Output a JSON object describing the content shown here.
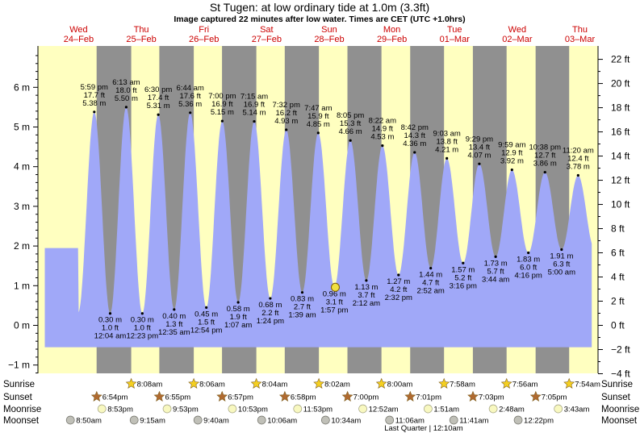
{
  "title": "St Tugen: at low  ordinary tide at 1.0m (3.3ft)",
  "subtitle": "Image captured 22 minutes after low water. Times are CET (UTC +1.0hrs)",
  "colors": {
    "water": "#a0a8f8",
    "day": "#ffffc0",
    "night": "#909090",
    "day_text": "#cc0000",
    "sunrise": "#f5d020",
    "sunset": "#b06a30",
    "moon": "#f8f8c0",
    "moonset": "#c0c0b8"
  },
  "chart_data": {
    "type": "area",
    "title": "St Tugen: at low  ordinary tide at 1.0m (3.3ft)",
    "ylabel": "",
    "ylabel_right": "",
    "ylim": [
      -1.3,
      7.1
    ],
    "y_ticks_m": [
      "−1 m",
      "0 m",
      "1 m",
      "2 m",
      "3 m",
      "4 m",
      "5 m",
      "6 m"
    ],
    "y_ticks_ft": [
      "−4 ft",
      "−2 ft",
      "0 ft",
      "2 ft",
      "4 ft",
      "6 ft",
      "8 ft",
      "10 ft",
      "12 ft",
      "14 ft",
      "16 ft",
      "18 ft",
      "20 ft",
      "22 ft"
    ],
    "days": [
      {
        "weekday": "Wed",
        "date": "24–Feb"
      },
      {
        "weekday": "Thu",
        "date": "25–Feb"
      },
      {
        "weekday": "Fri",
        "date": "26–Feb"
      },
      {
        "weekday": "Sat",
        "date": "27–Feb"
      },
      {
        "weekday": "Sun",
        "date": "28–Feb"
      },
      {
        "weekday": "Mon",
        "date": "29–Feb"
      },
      {
        "weekday": "Tue",
        "date": "01–Mar"
      },
      {
        "weekday": "Wed",
        "date": "02–Mar"
      },
      {
        "weekday": "Thu",
        "date": "03–Mar"
      }
    ],
    "series": [
      {
        "name": "Tide height",
        "points": [
          {
            "t": "Wed 24-Feb 17:59",
            "kind": "high",
            "time": "5:59 pm",
            "feet": "17.7 ft",
            "value": 5.38
          },
          {
            "t": "Thu 25-Feb 00:04",
            "kind": "low",
            "time": "12:04 am",
            "feet": "1.0 ft",
            "value": 0.3
          },
          {
            "t": "Thu 25-Feb 06:13",
            "kind": "high",
            "time": "6:13 am",
            "feet": "18.0 ft",
            "value": 5.5
          },
          {
            "t": "Thu 25-Feb 12:23",
            "kind": "low",
            "time": "12:23 pm",
            "feet": "1.0 ft",
            "value": 0.3
          },
          {
            "t": "Thu 25-Feb 18:30",
            "kind": "high",
            "time": "6:30 pm",
            "feet": "17.4 ft",
            "value": 5.31
          },
          {
            "t": "Fri 26-Feb 00:35",
            "kind": "low",
            "time": "12:35 am",
            "feet": "1.3 ft",
            "value": 0.4
          },
          {
            "t": "Fri 26-Feb 06:44",
            "kind": "high",
            "time": "6:44 am",
            "feet": "17.6 ft",
            "value": 5.36
          },
          {
            "t": "Fri 26-Feb 12:54",
            "kind": "low",
            "time": "12:54 pm",
            "feet": "1.5 ft",
            "value": 0.45
          },
          {
            "t": "Fri 26-Feb 19:00",
            "kind": "high",
            "time": "7:00 pm",
            "feet": "16.9 ft",
            "value": 5.15
          },
          {
            "t": "Sat 27-Feb 01:07",
            "kind": "low",
            "time": "1:07 am",
            "feet": "1.9 ft",
            "value": 0.58
          },
          {
            "t": "Sat 27-Feb 07:15",
            "kind": "high",
            "time": "7:15 am",
            "feet": "16.9 ft",
            "value": 5.14
          },
          {
            "t": "Sat 27-Feb 13:24",
            "kind": "low",
            "time": "1:24 pm",
            "feet": "2.2 ft",
            "value": 0.68
          },
          {
            "t": "Sat 27-Feb 19:32",
            "kind": "high",
            "time": "7:32 pm",
            "feet": "16.2 ft",
            "value": 4.93
          },
          {
            "t": "Sun 28-Feb 01:39",
            "kind": "low",
            "time": "1:39 am",
            "feet": "2.7 ft",
            "value": 0.83
          },
          {
            "t": "Sun 28-Feb 07:47",
            "kind": "high",
            "time": "7:47 am",
            "feet": "15.9 ft",
            "value": 4.85
          },
          {
            "t": "Sun 28-Feb 13:57",
            "kind": "low",
            "time": "1:57 pm",
            "feet": "3.1 ft",
            "value": 0.96
          },
          {
            "t": "Sun 28-Feb 20:05",
            "kind": "high",
            "time": "8:05 pm",
            "feet": "15.3 ft",
            "value": 4.66
          },
          {
            "t": "Mon 29-Feb 02:12",
            "kind": "low",
            "time": "2:12 am",
            "feet": "3.7 ft",
            "value": 1.13
          },
          {
            "t": "Mon 29-Feb 08:22",
            "kind": "high",
            "time": "8:22 am",
            "feet": "14.9 ft",
            "value": 4.53
          },
          {
            "t": "Mon 29-Feb 14:32",
            "kind": "low",
            "time": "2:32 pm",
            "feet": "4.2 ft",
            "value": 1.27
          },
          {
            "t": "Mon 29-Feb 20:42",
            "kind": "high",
            "time": "8:42 pm",
            "feet": "14.3 ft",
            "value": 4.36
          },
          {
            "t": "Tue 01-Mar 02:52",
            "kind": "low",
            "time": "2:52 am",
            "feet": "4.7 ft",
            "value": 1.44
          },
          {
            "t": "Tue 01-Mar 09:03",
            "kind": "high",
            "time": "9:03 am",
            "feet": "13.8 ft",
            "value": 4.21
          },
          {
            "t": "Tue 01-Mar 15:16",
            "kind": "low",
            "time": "3:16 pm",
            "feet": "5.2 ft",
            "value": 1.57
          },
          {
            "t": "Tue 01-Mar 21:29",
            "kind": "high",
            "time": "9:29 pm",
            "feet": "13.4 ft",
            "value": 4.07
          },
          {
            "t": "Wed 02-Mar 03:44",
            "kind": "low",
            "time": "3:44 am",
            "feet": "5.7 ft",
            "value": 1.73
          },
          {
            "t": "Wed 02-Mar 09:59",
            "kind": "high",
            "time": "9:59 am",
            "feet": "12.9 ft",
            "value": 3.92
          },
          {
            "t": "Wed 02-Mar 16:16",
            "kind": "low",
            "time": "4:16 pm",
            "feet": "6.0 ft",
            "value": 1.83
          },
          {
            "t": "Wed 02-Mar 22:38",
            "kind": "high",
            "time": "10:38 pm",
            "feet": "12.7 ft",
            "value": 3.86
          },
          {
            "t": "Thu 03-Mar 05:00",
            "kind": "low",
            "time": "5:00 am",
            "feet": "6.3 ft",
            "value": 1.91
          },
          {
            "t": "Thu 03-Mar 11:20",
            "kind": "high",
            "time": "11:20 am",
            "feet": "12.4 ft",
            "value": 3.78
          }
        ]
      }
    ],
    "current": {
      "t": "Sun 28-Feb 14:19",
      "value": 0.96
    },
    "sun": [
      {
        "day": 1,
        "sunrise": "8:08am",
        "sunset": "6:54pm"
      },
      {
        "day": 2,
        "sunrise": "8:06am",
        "sunset": "6:55pm"
      },
      {
        "day": 3,
        "sunrise": "8:04am",
        "sunset": "6:57pm"
      },
      {
        "day": 4,
        "sunrise": "8:02am",
        "sunset": "6:58pm"
      },
      {
        "day": 5,
        "sunrise": "8:00am",
        "sunset": "7:00pm"
      },
      {
        "day": 6,
        "sunrise": "7:58am",
        "sunset": "7:01pm"
      },
      {
        "day": 7,
        "sunrise": "7:56am",
        "sunset": "7:03pm"
      },
      {
        "day": 8,
        "sunrise": "7:54am",
        "sunset": "7:05pm"
      }
    ],
    "moonrise": [
      {
        "t": "Wed 24-Feb 20:53",
        "label": "8:53pm"
      },
      {
        "t": "Thu 25-Feb 21:53",
        "label": "9:53pm"
      },
      {
        "t": "Fri 26-Feb 22:53",
        "label": "10:53pm"
      },
      {
        "t": "Sat 27-Feb 23:53",
        "label": "11:53pm"
      },
      {
        "t": "Mon 29-Feb 00:52",
        "label": "12:52am"
      },
      {
        "t": "Tue 01-Mar 01:51",
        "label": "1:51am"
      },
      {
        "t": "Wed 02-Mar 02:48",
        "label": "2:48am"
      },
      {
        "t": "Thu 03-Mar 03:43",
        "label": "3:43am"
      }
    ],
    "moonset": [
      {
        "t": "Wed 24-Feb 08:50",
        "label": "8:50am"
      },
      {
        "t": "Thu 25-Feb 09:15",
        "label": "9:15am"
      },
      {
        "t": "Fri 26-Feb 09:40",
        "label": "9:40am"
      },
      {
        "t": "Sat 27-Feb 10:06",
        "label": "10:06am"
      },
      {
        "t": "Sun 28-Feb 10:34",
        "label": "10:34am"
      },
      {
        "t": "Mon 29-Feb 11:06",
        "label": "11:06am"
      },
      {
        "t": "Tue 01-Mar 11:41",
        "label": "11:41am"
      },
      {
        "t": "Wed 02-Mar 12:22",
        "label": "12:22pm"
      }
    ],
    "moon_phase": {
      "t": "Tue 01-Mar 00:10",
      "label": "Last Quarter | 12:10am"
    }
  },
  "rows": {
    "sunrise": "Sunrise",
    "sunset": "Sunset",
    "moonrise": "Moonrise",
    "moonset": "Moonset"
  }
}
